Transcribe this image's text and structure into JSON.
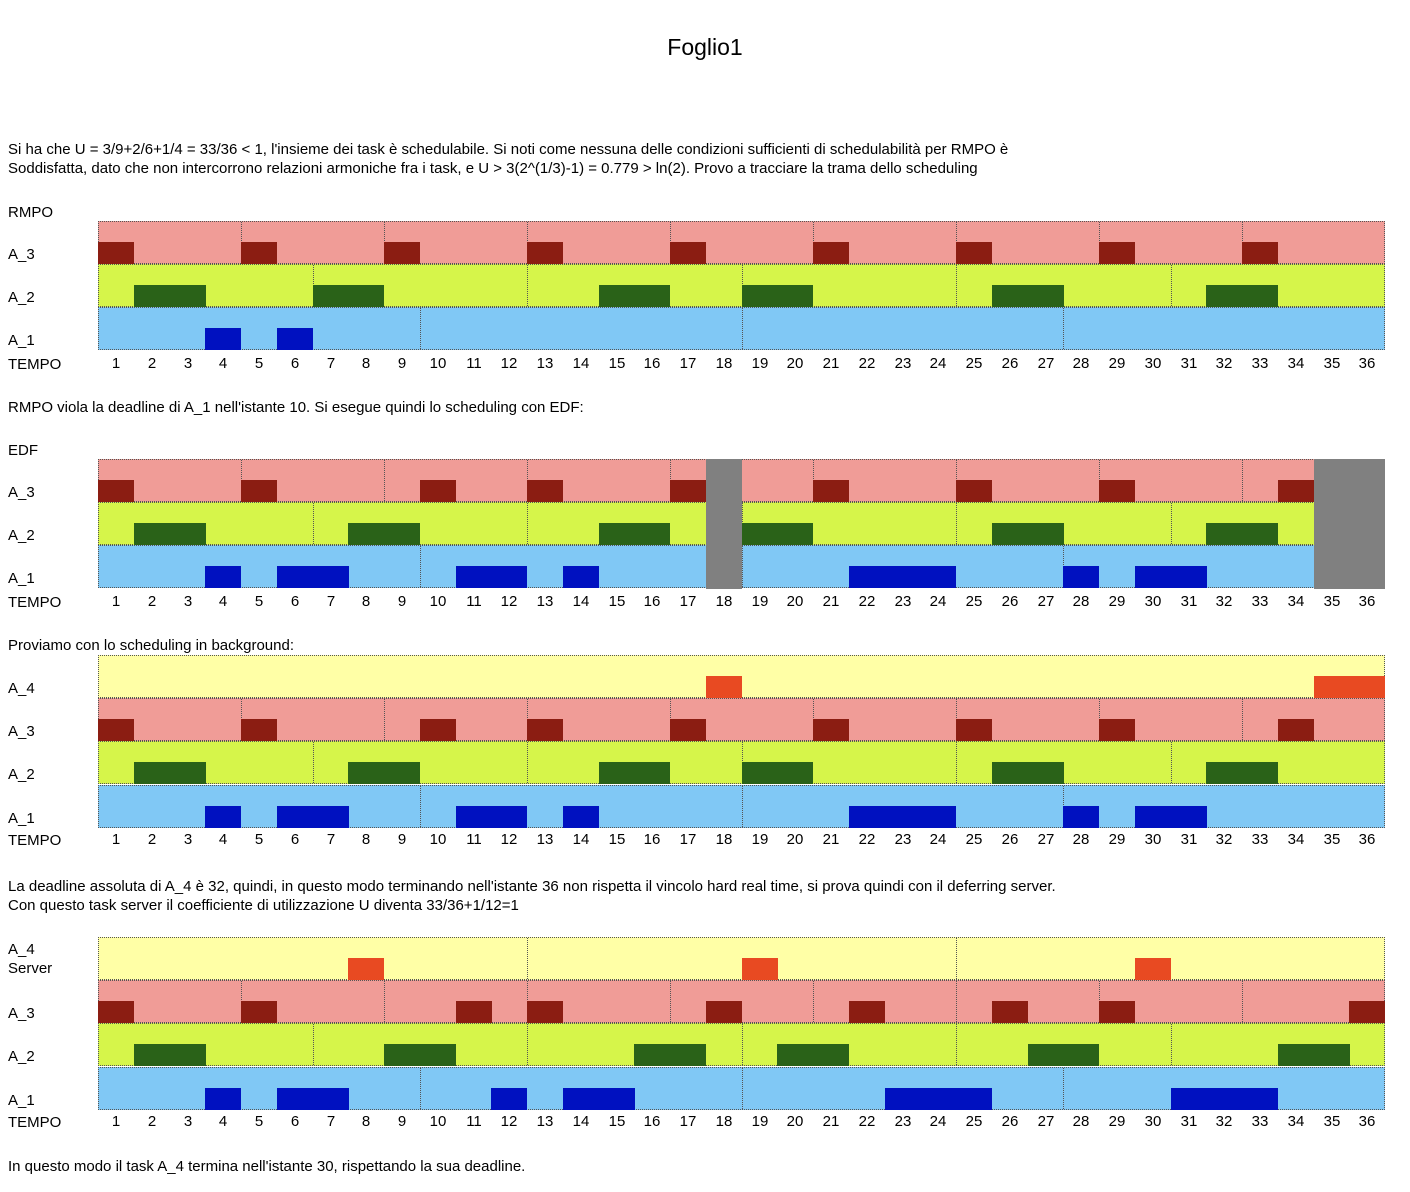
{
  "sheet_title": "Foglio1",
  "intro_lines": [
    "Si ha che U = 3/9+2/6+1/4 = 33/36 < 1, l'insieme dei task è schedulabile. Si noti come nessuna delle condizioni sufficienti di schedulabilità per RMPO è",
    "Soddisfatta, dato che non intercorrono relazioni armoniche fra i task, e U > 3(2^(1/3)-1) = 0.779 > ln(2). Provo a tracciare la trama dello scheduling"
  ],
  "time_label": "TEMPO",
  "time_ticks": [
    "1",
    "2",
    "3",
    "4",
    "5",
    "6",
    "7",
    "8",
    "9",
    "10",
    "11",
    "12",
    "13",
    "14",
    "15",
    "16",
    "17",
    "18",
    "19",
    "20",
    "21",
    "22",
    "23",
    "24",
    "25",
    "26",
    "27",
    "28",
    "29",
    "30",
    "31",
    "32",
    "33",
    "34",
    "35",
    "36"
  ],
  "colors": {
    "A_4_bg": "#ffffa6",
    "A_4_run": "#e84a22",
    "A_3_bg": "#f09c97",
    "A_3_run": "#8b1d12",
    "A_2_bg": "#d6f54a",
    "A_2_run": "#2a6218",
    "A_1_bg": "#80c8f5",
    "A_1_run": "#0011c0",
    "idle": "#808080"
  },
  "sections": [
    {
      "heading": "RMPO",
      "rows": [
        {
          "label": "A_3",
          "task": "A_3",
          "periods": [
            1,
            5,
            9,
            13,
            17,
            21,
            25,
            29,
            33
          ],
          "run": [
            1,
            5,
            9,
            13,
            17,
            21,
            25,
            29,
            33
          ]
        },
        {
          "label": "A_2",
          "task": "A_2",
          "periods": [
            1,
            7,
            13,
            19,
            25,
            31
          ],
          "run": [
            2,
            3,
            7,
            8,
            15,
            16,
            19,
            20,
            26,
            27,
            32,
            33
          ]
        },
        {
          "label": "A_1",
          "task": "A_1",
          "periods": [
            1,
            10,
            19,
            28
          ],
          "run": [
            4,
            6
          ]
        }
      ]
    },
    {
      "heading": "EDF",
      "idle": [
        18,
        35,
        36
      ],
      "rows": [
        {
          "label": "A_3",
          "task": "A_3",
          "periods": [
            1,
            5,
            9,
            13,
            17,
            21,
            25,
            29,
            33
          ],
          "run": [
            1,
            5,
            10,
            13,
            17,
            21,
            25,
            29,
            34
          ]
        },
        {
          "label": "A_2",
          "task": "A_2",
          "periods": [
            1,
            7,
            13,
            19,
            25,
            31
          ],
          "run": [
            2,
            3,
            8,
            9,
            15,
            16,
            19,
            20,
            26,
            27,
            32,
            33
          ]
        },
        {
          "label": "A_1",
          "task": "A_1",
          "periods": [
            1,
            10,
            19,
            28
          ],
          "run": [
            4,
            6,
            7,
            11,
            12,
            14,
            22,
            23,
            24,
            28,
            30,
            31
          ]
        }
      ]
    },
    {
      "heading": "Proviamo con lo scheduling in background:",
      "rows": [
        {
          "label": "A_4",
          "task": "A_4",
          "periods": [
            1
          ],
          "run": [
            18,
            35,
            36
          ]
        },
        {
          "label": "A_3",
          "task": "A_3",
          "periods": [
            1,
            5,
            9,
            13,
            17,
            21,
            25,
            29,
            33
          ],
          "run": [
            1,
            5,
            10,
            13,
            17,
            21,
            25,
            29,
            34
          ]
        },
        {
          "label": "A_2",
          "task": "A_2",
          "periods": [
            1,
            7,
            13,
            19,
            25,
            31
          ],
          "run": [
            2,
            3,
            8,
            9,
            15,
            16,
            19,
            20,
            26,
            27,
            32,
            33
          ]
        },
        {
          "label": "A_1",
          "task": "A_1",
          "periods": [
            1,
            10,
            19,
            28
          ],
          "run": [
            4,
            6,
            7,
            11,
            12,
            14,
            22,
            23,
            24,
            28,
            30,
            31
          ]
        }
      ]
    },
    {
      "heading": "",
      "rows": [
        {
          "label": "A_4",
          "label2": "Server",
          "task": "A_4",
          "periods": [
            1,
            13,
            25
          ],
          "run": [
            8,
            19,
            30
          ]
        },
        {
          "label": "A_3",
          "task": "A_3",
          "periods": [
            1,
            5,
            9,
            13,
            17,
            21,
            25,
            29,
            33
          ],
          "run": [
            1,
            5,
            11,
            13,
            18,
            22,
            26,
            29,
            36
          ]
        },
        {
          "label": "A_2",
          "task": "A_2",
          "periods": [
            1,
            7,
            13,
            19,
            25,
            31
          ],
          "run": [
            2,
            3,
            9,
            10,
            16,
            17,
            20,
            21,
            27,
            28,
            34,
            35
          ]
        },
        {
          "label": "A_1",
          "task": "A_1",
          "periods": [
            1,
            10,
            19,
            28
          ],
          "run": [
            4,
            6,
            7,
            12,
            14,
            15,
            23,
            24,
            25,
            31,
            32,
            33
          ]
        }
      ]
    }
  ],
  "text_after_rmpo": "RMPO viola la deadline di A_1 nell'istante 10. Si esegue quindi lo scheduling con EDF:",
  "text_before_server": [
    "La deadline assoluta di A_4 è 32, quindi, in questo modo terminando nell'istante 36 non rispetta il vincolo hard real time, si prova quindi con il deferring server.",
    "Con questo task server il coefficiente di utilizzazione U diventa 33/36+1/12=1"
  ],
  "closing_text": "In questo modo il task A_4 termina nell'istante 30, rispettando la sua deadline."
}
